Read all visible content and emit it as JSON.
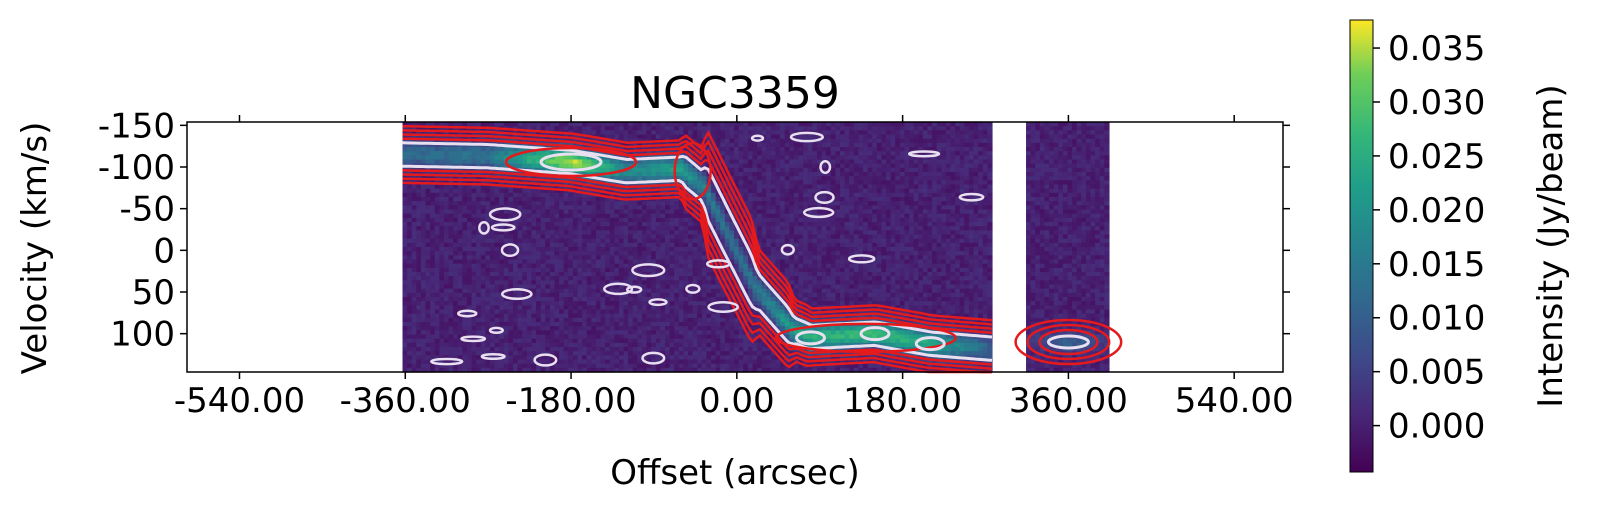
{
  "chart_data": {
    "type": "heatmap",
    "title": "NGC3359",
    "xlabel": "Offset (arcsec)",
    "ylabel": "Velocity (km/s)",
    "xlim": [
      -597,
      593
    ],
    "ylim": [
      -154,
      146
    ],
    "y_inverted": true,
    "xticks": [
      -540,
      -360,
      -180,
      0,
      180,
      360,
      540
    ],
    "xtick_labels": [
      "-540.00",
      "-360.00",
      "-180.00",
      "0.00",
      "180.00",
      "360.00",
      "540.00"
    ],
    "yticks": [
      -150,
      -100,
      -50,
      0,
      50,
      100
    ],
    "ytick_labels": [
      "-150",
      "-100",
      "-50",
      "0",
      "50",
      "100"
    ],
    "data_segments": [
      {
        "offset_range": [
          -363,
          277
        ]
      },
      {
        "offset_range": [
          314,
          402
        ]
      }
    ],
    "ridge": [
      {
        "offset": -363,
        "velocity": -115,
        "intensity": 0.012
      },
      {
        "offset": -270,
        "velocity": -113,
        "intensity": 0.014
      },
      {
        "offset": -180,
        "velocity": -106,
        "intensity": 0.036
      },
      {
        "offset": -120,
        "velocity": -95,
        "intensity": 0.018
      },
      {
        "offset": -60,
        "velocity": -98,
        "intensity": 0.022
      },
      {
        "offset": -35,
        "velocity": -75,
        "intensity": 0.016
      },
      {
        "offset": -10,
        "velocity": -20,
        "intensity": 0.013
      },
      {
        "offset": 20,
        "velocity": 45,
        "intensity": 0.014
      },
      {
        "offset": 60,
        "velocity": 95,
        "intensity": 0.022
      },
      {
        "offset": 80,
        "velocity": 104,
        "intensity": 0.025
      },
      {
        "offset": 150,
        "velocity": 100,
        "intensity": 0.028
      },
      {
        "offset": 210,
        "velocity": 112,
        "intensity": 0.024
      },
      {
        "offset": 277,
        "velocity": 118,
        "intensity": 0.01
      }
    ],
    "secondary_feature": {
      "offset": 360,
      "velocity": 110,
      "intensity": 0.01
    },
    "contours": [
      {
        "color": "#e8e0f0",
        "label": "white contours"
      },
      {
        "color": "#e41a1c",
        "label": "red contours"
      }
    ],
    "colorbar": {
      "label": "Intensity (Jy/beam)",
      "range": [
        -0.0043,
        0.0376
      ],
      "ticks": [
        0.0,
        0.005,
        0.01,
        0.015,
        0.02,
        0.025,
        0.03,
        0.035
      ],
      "tick_labels": [
        "0.000",
        "0.005",
        "0.010",
        "0.015",
        "0.020",
        "0.025",
        "0.030",
        "0.035"
      ],
      "colormap": "viridis"
    }
  }
}
